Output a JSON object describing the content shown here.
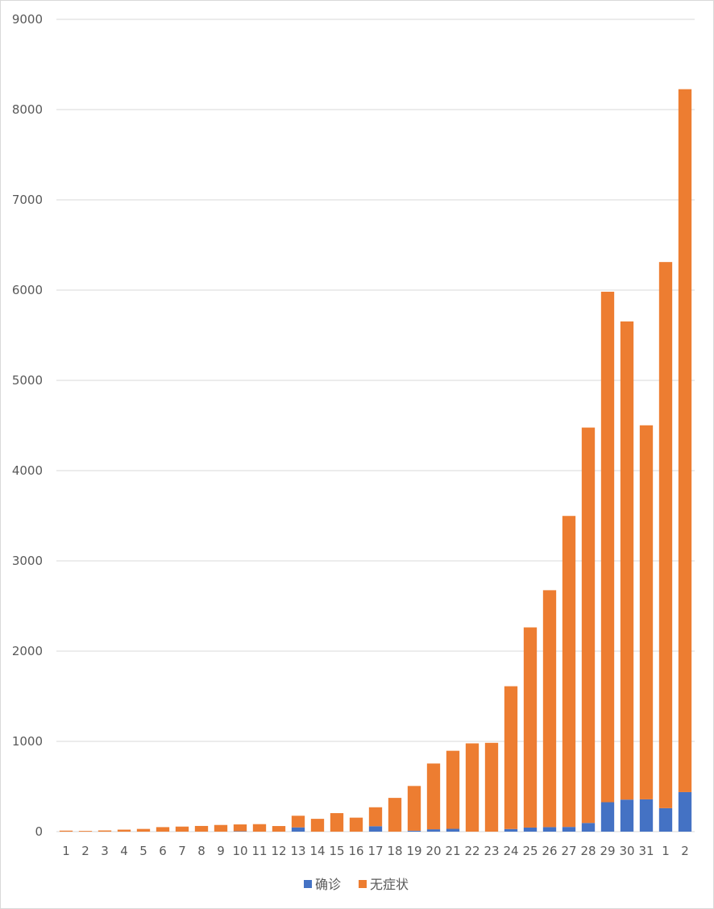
{
  "chart_data": {
    "type": "bar",
    "stacked": true,
    "title": "",
    "xlabel": "",
    "ylabel": "",
    "ylim": [
      0,
      9000
    ],
    "yticks": [
      0,
      1000,
      2000,
      3000,
      4000,
      5000,
      6000,
      7000,
      8000,
      9000
    ],
    "grid": true,
    "legend": "bottom",
    "categories": [
      "1",
      "2",
      "3",
      "4",
      "5",
      "6",
      "7",
      "8",
      "9",
      "10",
      "11",
      "12",
      "13",
      "14",
      "15",
      "16",
      "17",
      "18",
      "19",
      "20",
      "21",
      "22",
      "23",
      "24",
      "25",
      "26",
      "27",
      "28",
      "29",
      "30",
      "31",
      "1",
      "2"
    ],
    "series": [
      {
        "name": "确诊",
        "color": "#4472C4",
        "values": [
          0,
          0,
          0,
          0,
          0,
          0,
          0,
          0,
          0,
          4,
          0,
          0,
          47,
          0,
          0,
          0,
          60,
          0,
          10,
          26,
          31,
          0,
          0,
          29,
          45,
          50,
          52,
          96,
          326,
          355,
          358,
          260,
          438
        ]
      },
      {
        "name": "无症状",
        "color": "#ED7D31",
        "values": [
          11,
          8,
          13,
          22,
          30,
          50,
          56,
          63,
          74,
          76,
          83,
          62,
          129,
          142,
          205,
          155,
          210,
          374,
          496,
          729,
          865,
          978,
          984,
          1582,
          2218,
          2625,
          3446,
          4381,
          5656,
          5298,
          4144,
          6051,
          7788
        ]
      }
    ]
  }
}
